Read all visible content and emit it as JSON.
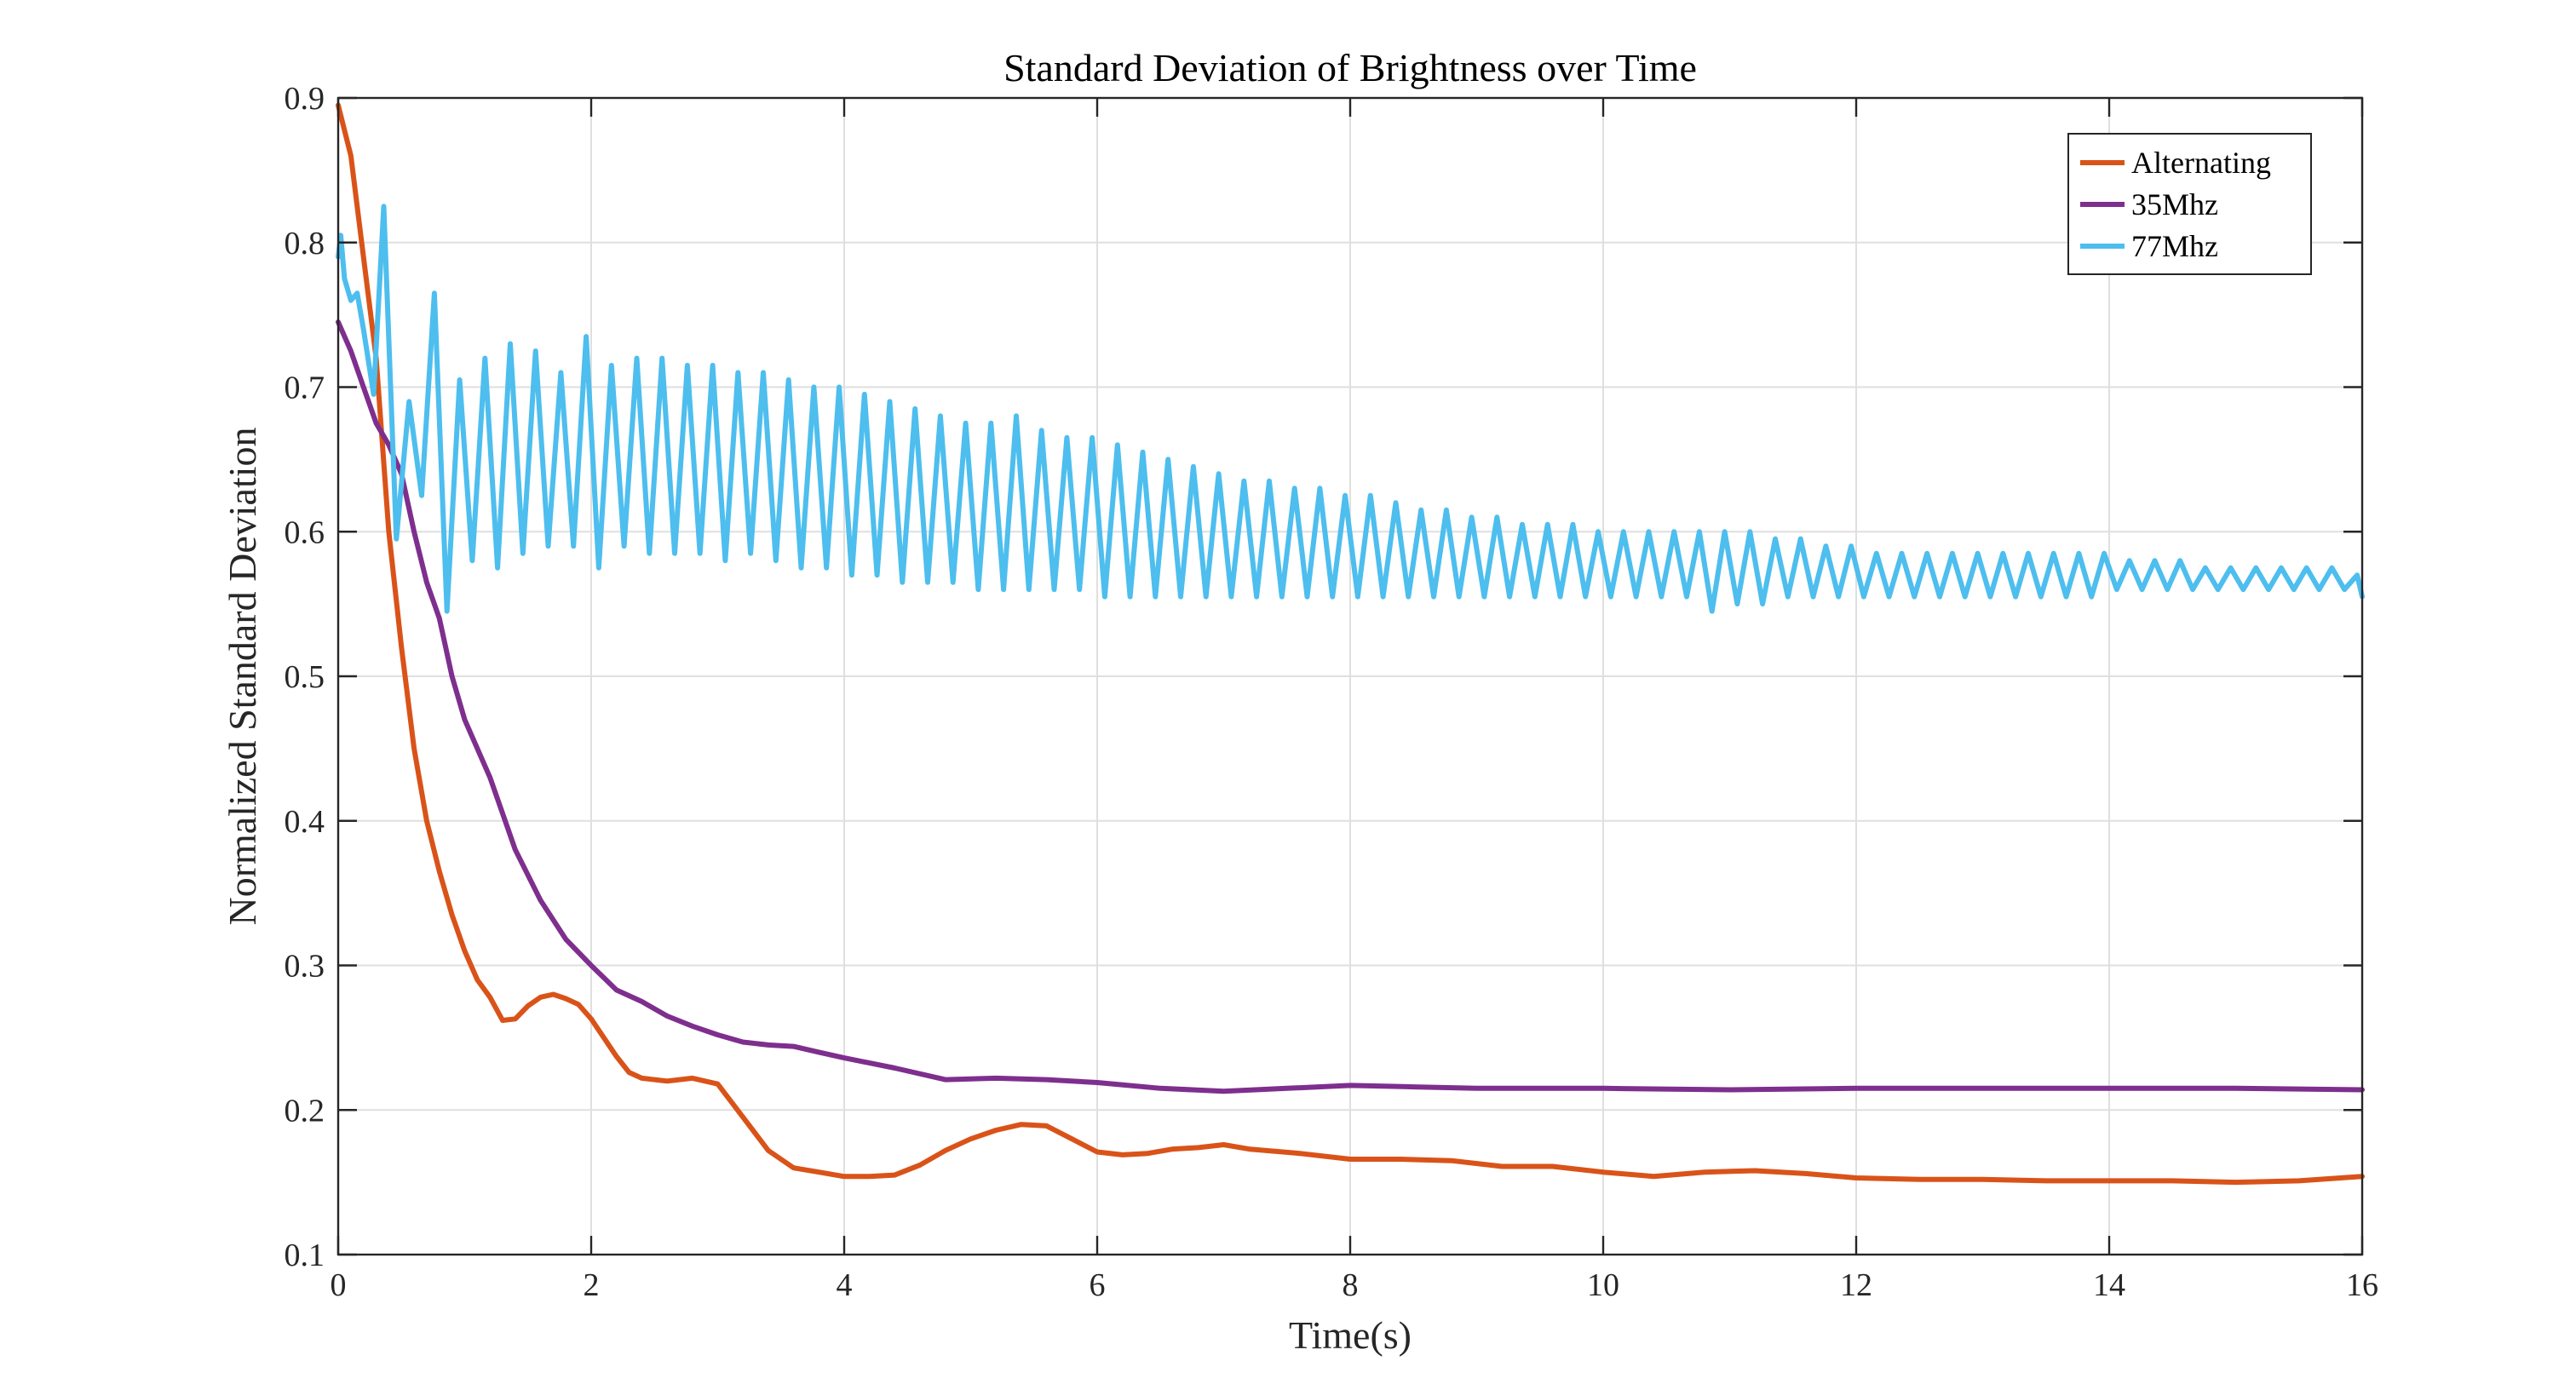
{
  "chart_data": {
    "type": "line",
    "title": "Standard Deviation of Brightness over Time",
    "xlabel": "Time(s)",
    "ylabel": "Normalized Standard Deviation",
    "xlim": [
      0,
      16
    ],
    "ylim": [
      0.1,
      0.9
    ],
    "xticks": [
      0,
      2,
      4,
      6,
      8,
      10,
      12,
      14,
      16
    ],
    "yticks": [
      0.1,
      0.2,
      0.3,
      0.4,
      0.5,
      0.6,
      0.7,
      0.8,
      0.9
    ],
    "xtick_labels": [
      "0",
      "2",
      "4",
      "6",
      "8",
      "10",
      "12",
      "14",
      "16"
    ],
    "ytick_labels": [
      "0.1",
      "0.2",
      "0.3",
      "0.4",
      "0.5",
      "0.6",
      "0.7",
      "0.8",
      "0.9"
    ],
    "grid": true,
    "box": true,
    "legend_position": "top-right",
    "series": [
      {
        "name": "Alternating",
        "color": "#D95319",
        "x": [
          0,
          0.1,
          0.2,
          0.3,
          0.4,
          0.5,
          0.6,
          0.7,
          0.8,
          0.9,
          1.0,
          1.1,
          1.2,
          1.3,
          1.4,
          1.5,
          1.6,
          1.7,
          1.8,
          1.9,
          2.0,
          2.1,
          2.2,
          2.3,
          2.4,
          2.6,
          2.8,
          3.0,
          3.2,
          3.4,
          3.6,
          3.8,
          4.0,
          4.2,
          4.4,
          4.6,
          4.8,
          5.0,
          5.2,
          5.4,
          5.6,
          5.8,
          6.0,
          6.2,
          6.4,
          6.6,
          6.8,
          7.0,
          7.2,
          7.6,
          8.0,
          8.4,
          8.8,
          9.2,
          9.6,
          10.0,
          10.4,
          10.8,
          11.2,
          11.6,
          12.0,
          12.5,
          13.0,
          13.5,
          14.0,
          14.5,
          15.0,
          15.5,
          16.0
        ],
        "values": [
          0.895,
          0.86,
          0.79,
          0.72,
          0.6,
          0.52,
          0.45,
          0.4,
          0.365,
          0.335,
          0.31,
          0.29,
          0.278,
          0.262,
          0.263,
          0.272,
          0.278,
          0.28,
          0.277,
          0.273,
          0.263,
          0.25,
          0.237,
          0.226,
          0.222,
          0.22,
          0.222,
          0.218,
          0.195,
          0.172,
          0.16,
          0.157,
          0.154,
          0.154,
          0.155,
          0.162,
          0.172,
          0.18,
          0.186,
          0.19,
          0.189,
          0.18,
          0.171,
          0.169,
          0.17,
          0.173,
          0.174,
          0.176,
          0.173,
          0.17,
          0.166,
          0.166,
          0.165,
          0.161,
          0.161,
          0.157,
          0.154,
          0.157,
          0.158,
          0.156,
          0.153,
          0.152,
          0.152,
          0.151,
          0.151,
          0.151,
          0.15,
          0.151,
          0.154
        ]
      },
      {
        "name": "35Mhz",
        "color": "#7E2F8E",
        "x": [
          0,
          0.1,
          0.2,
          0.3,
          0.4,
          0.5,
          0.6,
          0.7,
          0.8,
          0.9,
          1.0,
          1.2,
          1.4,
          1.6,
          1.8,
          2.0,
          2.2,
          2.4,
          2.6,
          2.8,
          3.0,
          3.2,
          3.4,
          3.6,
          3.8,
          4.0,
          4.4,
          4.8,
          5.2,
          5.6,
          6.0,
          6.5,
          7.0,
          7.5,
          8.0,
          8.5,
          9.0,
          10.0,
          11.0,
          12.0,
          13.0,
          14.0,
          15.0,
          16.0
        ],
        "values": [
          0.745,
          0.725,
          0.7,
          0.675,
          0.66,
          0.64,
          0.6,
          0.565,
          0.54,
          0.5,
          0.47,
          0.43,
          0.38,
          0.345,
          0.318,
          0.3,
          0.283,
          0.275,
          0.265,
          0.258,
          0.252,
          0.247,
          0.245,
          0.244,
          0.24,
          0.236,
          0.229,
          0.221,
          0.222,
          0.221,
          0.219,
          0.215,
          0.213,
          0.215,
          0.217,
          0.216,
          0.215,
          0.215,
          0.214,
          0.215,
          0.215,
          0.215,
          0.215,
          0.214
        ]
      },
      {
        "name": "77Mhz",
        "color": "#4DBEEE",
        "x": [
          0,
          0.02,
          0.05,
          0.1,
          0.15,
          0.2,
          0.28,
          0.36,
          0.46,
          0.56,
          0.66,
          0.76,
          0.86,
          0.96,
          1.06,
          1.16,
          1.26,
          1.36,
          1.46,
          1.56,
          1.66,
          1.76,
          1.86,
          1.96,
          2.06,
          2.16,
          2.26,
          2.36,
          2.46,
          2.56,
          2.66,
          2.76,
          2.86,
          2.96,
          3.06,
          3.16,
          3.26,
          3.36,
          3.46,
          3.56,
          3.66,
          3.76,
          3.86,
          3.96,
          4.06,
          4.16,
          4.26,
          4.36,
          4.46,
          4.56,
          4.66,
          4.76,
          4.86,
          4.96,
          5.06,
          5.16,
          5.26,
          5.36,
          5.46,
          5.56,
          5.66,
          5.76,
          5.86,
          5.96,
          6.06,
          6.16,
          6.26,
          6.36,
          6.46,
          6.56,
          6.66,
          6.76,
          6.86,
          6.96,
          7.06,
          7.16,
          7.26,
          7.36,
          7.46,
          7.56,
          7.66,
          7.76,
          7.86,
          7.96,
          8.06,
          8.16,
          8.26,
          8.36,
          8.46,
          8.56,
          8.66,
          8.76,
          8.86,
          8.96,
          9.06,
          9.16,
          9.26,
          9.36,
          9.46,
          9.56,
          9.66,
          9.76,
          9.86,
          9.96,
          10.06,
          10.16,
          10.26,
          10.36,
          10.46,
          10.56,
          10.66,
          10.76,
          10.86,
          10.96,
          11.06,
          11.16,
          11.26,
          11.36,
          11.46,
          11.56,
          11.66,
          11.76,
          11.86,
          11.96,
          12.06,
          12.16,
          12.26,
          12.36,
          12.46,
          12.56,
          12.66,
          12.76,
          12.86,
          12.96,
          13.06,
          13.16,
          13.26,
          13.36,
          13.46,
          13.56,
          13.66,
          13.76,
          13.86,
          13.96,
          14.06,
          14.16,
          14.26,
          14.36,
          14.46,
          14.56,
          14.66,
          14.76,
          14.86,
          14.96,
          15.06,
          15.16,
          15.26,
          15.36,
          15.46,
          15.56,
          15.66,
          15.76,
          15.86,
          15.96,
          16.0
        ],
        "values": [
          0.79,
          0.805,
          0.775,
          0.76,
          0.765,
          0.74,
          0.695,
          0.825,
          0.595,
          0.69,
          0.625,
          0.765,
          0.545,
          0.705,
          0.58,
          0.72,
          0.575,
          0.73,
          0.585,
          0.725,
          0.59,
          0.71,
          0.59,
          0.735,
          0.575,
          0.715,
          0.59,
          0.72,
          0.585,
          0.72,
          0.585,
          0.715,
          0.585,
          0.715,
          0.58,
          0.71,
          0.585,
          0.71,
          0.58,
          0.705,
          0.575,
          0.7,
          0.575,
          0.7,
          0.57,
          0.695,
          0.57,
          0.69,
          0.565,
          0.685,
          0.565,
          0.68,
          0.565,
          0.675,
          0.56,
          0.675,
          0.56,
          0.68,
          0.56,
          0.67,
          0.56,
          0.665,
          0.56,
          0.665,
          0.555,
          0.66,
          0.555,
          0.655,
          0.555,
          0.65,
          0.555,
          0.645,
          0.555,
          0.64,
          0.555,
          0.635,
          0.555,
          0.635,
          0.555,
          0.63,
          0.555,
          0.63,
          0.555,
          0.625,
          0.555,
          0.625,
          0.555,
          0.62,
          0.555,
          0.615,
          0.555,
          0.615,
          0.555,
          0.61,
          0.555,
          0.61,
          0.555,
          0.605,
          0.555,
          0.605,
          0.555,
          0.605,
          0.555,
          0.6,
          0.555,
          0.6,
          0.555,
          0.6,
          0.555,
          0.6,
          0.555,
          0.6,
          0.545,
          0.6,
          0.55,
          0.6,
          0.55,
          0.595,
          0.555,
          0.595,
          0.555,
          0.59,
          0.555,
          0.59,
          0.555,
          0.585,
          0.555,
          0.585,
          0.555,
          0.585,
          0.555,
          0.585,
          0.555,
          0.585,
          0.555,
          0.585,
          0.555,
          0.585,
          0.555,
          0.585,
          0.555,
          0.585,
          0.555,
          0.585,
          0.56,
          0.58,
          0.56,
          0.58,
          0.56,
          0.58,
          0.56,
          0.575,
          0.56,
          0.575,
          0.56,
          0.575,
          0.56,
          0.575,
          0.56,
          0.575,
          0.56,
          0.575,
          0.56,
          0.57,
          0.555
        ]
      }
    ]
  }
}
